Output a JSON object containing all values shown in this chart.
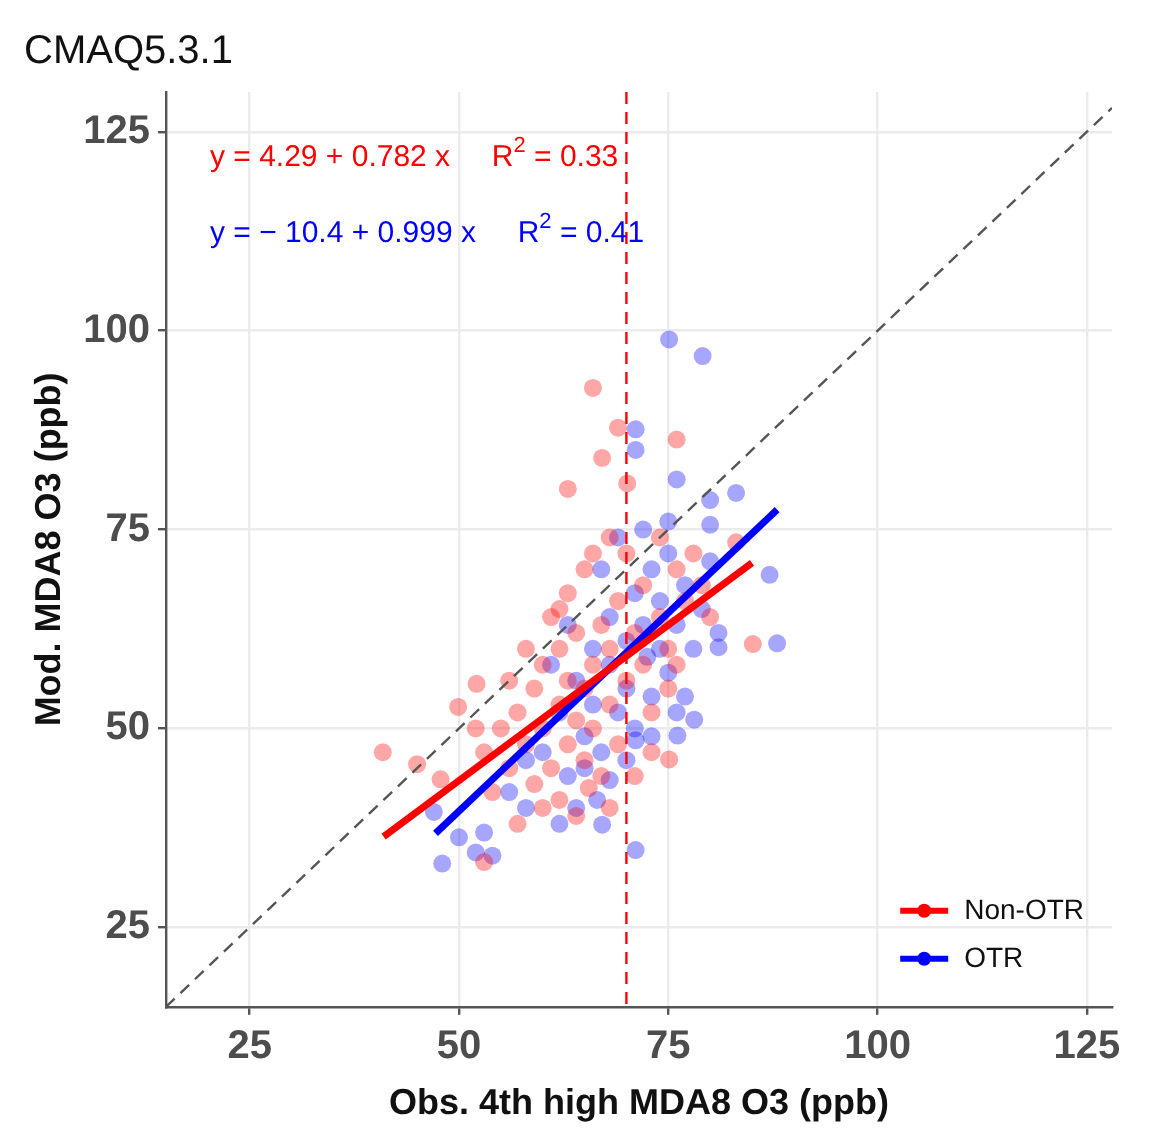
{
  "chart_data": {
    "type": "scatter",
    "title": "CMAQ5.3.1",
    "xlabel": "Obs. 4th high MDA8 O3 (ppb)",
    "ylabel": "Mod. MDA8 O3 (ppb)",
    "xlim": [
      15,
      128
    ],
    "ylim": [
      15,
      130
    ],
    "xticks": [
      25,
      50,
      75,
      100,
      125
    ],
    "yticks": [
      25,
      50,
      75,
      100,
      125
    ],
    "grid": true,
    "legend": "bottom right",
    "marker": "circle",
    "annotations": [
      "y = 4.29 + 0.782 x     R$^{2}$ = 0.33",
      "y = − 10.4 + 0.999 x     R$^{2}$ = 0.41"
    ],
    "ref_lines": [
      {
        "axis": "x",
        "value": 70,
        "color": "#ff0000",
        "line_style": "dashed"
      }
    ],
    "series": [
      {
        "name": "Non-OTR",
        "color": "#ff0000",
        "x": [
          66,
          69,
          67.1,
          76,
          63,
          70.1,
          40.9,
          45,
          85.1,
          83.1,
          75.1,
          53,
          49.9,
          52.1,
          47.8,
          55,
          57,
          58,
          59,
          60,
          60,
          61,
          62,
          62,
          63,
          63,
          64,
          64,
          65,
          65,
          66,
          66,
          67,
          67,
          68,
          68,
          69,
          69,
          70,
          71,
          72,
          72,
          73,
          74,
          75,
          76,
          77,
          78,
          58,
          56,
          54,
          53,
          52,
          56,
          61,
          63,
          65,
          60,
          62,
          64,
          65.5,
          68,
          71,
          73,
          57,
          59,
          62,
          66,
          68,
          70,
          74,
          79,
          80,
          76,
          75
        ],
        "values": [
          92.8,
          87.8,
          84,
          86.3,
          80.1,
          80.8,
          47,
          45.5,
          60.6,
          73.4,
          46.1,
          33.2,
          52.7,
          55.6,
          43.6,
          50,
          52,
          48,
          55,
          50,
          58,
          45,
          53,
          60,
          48,
          56,
          51,
          62,
          46,
          55,
          58,
          50,
          63,
          44,
          53,
          60,
          66,
          48,
          56,
          62,
          58,
          68,
          52,
          64,
          60,
          70,
          66,
          72,
          60,
          45,
          42,
          47,
          50,
          56,
          64,
          67,
          70,
          40,
          41,
          39,
          42.5,
          40,
          44,
          47,
          38,
          43,
          65,
          72,
          74,
          72,
          74,
          68,
          64,
          58,
          55
        ]
      },
      {
        "name": "OTR",
        "color": "#0000ff",
        "x": [
          75.1,
          79.1,
          71.1,
          71.1,
          76,
          83.1,
          80,
          80,
          87.1,
          88,
          81,
          78.1,
          76.1,
          71.1,
          48,
          52,
          54,
          50,
          53,
          67.1,
          68,
          71.1,
          47,
          60,
          62,
          63,
          64,
          65,
          66,
          66,
          67,
          68,
          68,
          69,
          70,
          70,
          71,
          71,
          72.5,
          72,
          73,
          73,
          74,
          74,
          75,
          75,
          76,
          77,
          77,
          78,
          79,
          80,
          81,
          64,
          66.5,
          62,
          58,
          61,
          63,
          67,
          69,
          72,
          75,
          58,
          56,
          65,
          70,
          73,
          76
        ],
        "values": [
          98.9,
          96.8,
          87.6,
          85,
          81.3,
          79.6,
          78.7,
          75.6,
          69.3,
          60.7,
          60.2,
          51.1,
          49.1,
          34.7,
          33,
          34.4,
          34,
          36.3,
          36.9,
          37.9,
          43.5,
          48.5,
          39.5,
          47,
          52,
          44,
          56,
          49,
          60,
          53,
          47,
          58,
          64,
          52,
          61,
          55,
          67,
          50,
          59,
          63,
          70,
          54,
          60,
          66,
          57,
          72,
          63,
          68,
          54,
          60,
          65,
          71,
          62,
          40,
          41,
          38,
          40,
          58,
          63,
          70,
          74,
          75,
          76,
          46,
          42,
          45,
          46,
          49,
          52
        ]
      },
      {
        "type": "line",
        "marker": "none",
        "color": "#ff0000",
        "x": [
          41,
          85
        ],
        "values": [
          36.4,
          70.8
        ]
      },
      {
        "type": "line",
        "marker": "none",
        "color": "#0000ff",
        "x": [
          47.2,
          88
        ],
        "values": [
          36.8,
          77.5
        ]
      },
      {
        "type": "line",
        "marker": "none",
        "color": "#555555",
        "line_style": "dashed",
        "x": [
          15,
          128
        ],
        "values": [
          15,
          128
        ]
      }
    ]
  }
}
